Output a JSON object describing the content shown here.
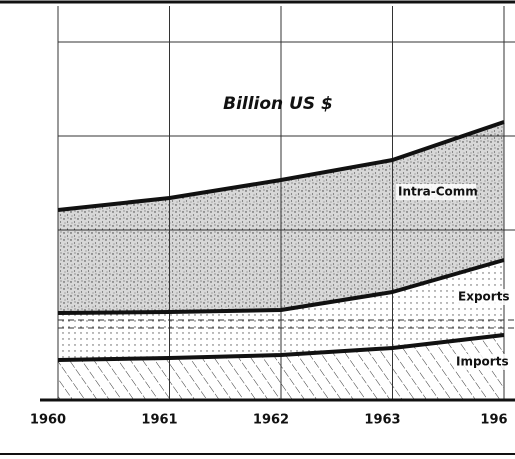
{
  "chart_data": {
    "type": "stacked_area",
    "title": "Billion US $",
    "categories": [
      "1960",
      "1961",
      "1962",
      "1963",
      "196"
    ],
    "series": [
      {
        "name": "Imports",
        "color": "#111111",
        "values": [
          10,
          10.5,
          11.25,
          13,
          16.25
        ]
      },
      {
        "name": "Exports",
        "color": "#111111",
        "values": [
          11.75,
          11.5,
          11.25,
          14,
          18.75
        ]
      },
      {
        "name": "Intra-Comm",
        "color": "#111111",
        "values": [
          25.75,
          28.5,
          32.5,
          33,
          34.5
        ]
      }
    ],
    "ylim": [
      0,
      100
    ],
    "grid": true
  }
}
